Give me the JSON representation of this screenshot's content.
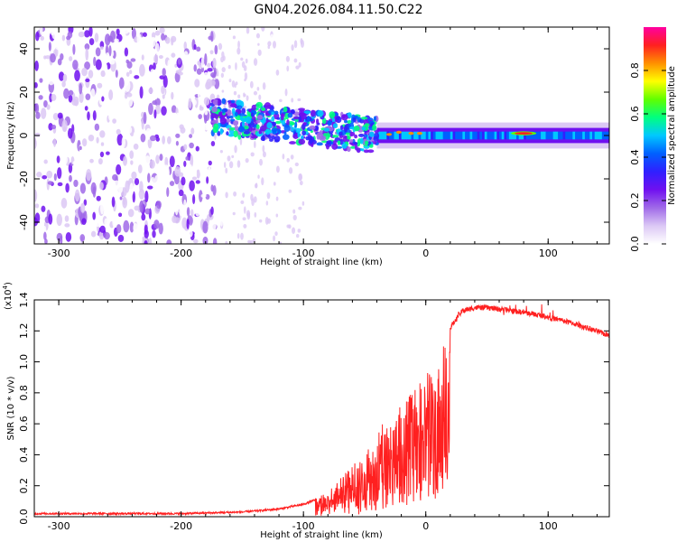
{
  "title": "GN04.2026.084.11.50.C22",
  "chart_data": [
    {
      "type": "heatmap",
      "name": "spectrogram",
      "xlabel": "Height of straight line (km)",
      "ylabel": "Frequency (Hz)",
      "xlim": [
        -320,
        150
      ],
      "ylim": [
        -50,
        50
      ],
      "xticks": [
        -300,
        -200,
        -100,
        0,
        100
      ],
      "xtick_labels": [
        "-300",
        "-200",
        "-100",
        "0",
        "100"
      ],
      "yticks": [
        -40,
        -20,
        0,
        20,
        40
      ],
      "ytick_labels": [
        "-40",
        "-20",
        "0",
        "20",
        "40"
      ],
      "colorbar": {
        "label": "Normalized spectral amplitude",
        "range": [
          0.0,
          1.0
        ],
        "ticks": [
          0.0,
          0.2,
          0.4,
          0.6,
          0.8
        ],
        "tick_labels": [
          "0.0",
          "0.2",
          "0.4",
          "0.6",
          "0.8"
        ],
        "colors": [
          "#ffffff",
          "#dcc8f5",
          "#a06ae8",
          "#7010f0",
          "#3020ff",
          "#0060ff",
          "#00c8ff",
          "#00ff80",
          "#60ff00",
          "#ffff00",
          "#ff9000",
          "#ff2020",
          "#ff00a0"
        ]
      },
      "features": [
        {
          "name": "diffuse noise",
          "x_range": [
            -320,
            -170
          ],
          "freq_range": [
            -50,
            50
          ],
          "amplitude": 0.2
        },
        {
          "name": "sparse noise",
          "x_range": [
            -170,
            -100
          ],
          "freq_range": [
            -50,
            50
          ],
          "amplitude": 0.05
        },
        {
          "name": "turbulent band",
          "x_range": [
            -175,
            -40
          ],
          "freq_center": [
            9,
            0
          ],
          "amplitude": 0.4
        },
        {
          "name": "stable band",
          "x_range": [
            -40,
            150
          ],
          "freq_center": 0,
          "amplitude": 0.45
        },
        {
          "name": "peak",
          "x_center": 80,
          "freq_center": 1,
          "amplitude": 0.9
        }
      ]
    },
    {
      "type": "line",
      "name": "snr",
      "xlabel": "Height of straight line (km)",
      "ylabel": "SNR (10 * v/v)",
      "y_multiplier": "(x10",
      "y_multiplier_exp": "4",
      "y_multiplier_close": ")",
      "xlim": [
        -320,
        150
      ],
      "ylim": [
        0.0,
        1.4
      ],
      "xticks": [
        -300,
        -200,
        -100,
        0,
        100
      ],
      "xtick_labels": [
        "-300",
        "-200",
        "-100",
        "0",
        "100"
      ],
      "yticks": [
        0.0,
        0.2,
        0.4,
        0.6,
        0.8,
        1.0,
        1.2,
        1.4
      ],
      "ytick_labels": [
        "0.0",
        "0.2",
        "0.4",
        "0.6",
        "0.8",
        "1.0",
        "1.2",
        "1.4"
      ],
      "color": "#ff2020",
      "series": [
        {
          "name": "SNR",
          "x": [
            -320,
            -250,
            -200,
            -150,
            -120,
            -100,
            -80,
            -70,
            -60,
            -50,
            -40,
            -30,
            -20,
            -10,
            0,
            10,
            20,
            30,
            40,
            50,
            60,
            80,
            100,
            120,
            150
          ],
          "y": [
            0.02,
            0.02,
            0.02,
            0.03,
            0.05,
            0.08,
            0.14,
            0.22,
            0.35,
            0.42,
            0.55,
            0.62,
            0.72,
            0.82,
            0.9,
            1.0,
            1.22,
            1.33,
            1.35,
            1.35,
            1.34,
            1.32,
            1.29,
            1.25,
            1.17
          ]
        }
      ]
    }
  ]
}
